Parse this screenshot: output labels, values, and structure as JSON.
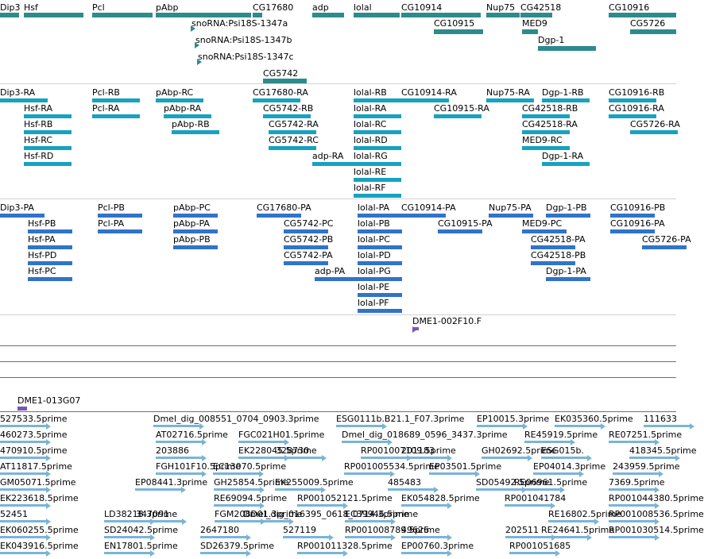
{
  "colors": {
    "gene": "#2e8b8b",
    "transcript_ra": "#17a2bf",
    "transcript_pa": "#3074c8",
    "clone": "#7a55b8",
    "est": "#7ab4d8",
    "divider": "#6e6a8e"
  },
  "icons": {
    "gene_arrow": "triangle-arrow-icon",
    "est_arrow": "triangle-arrow-icon"
  },
  "tracks": {
    "genes": [
      {
        "label": "Dip3"
      },
      {
        "label": "Hsf"
      },
      {
        "label": "Pcl"
      },
      {
        "label": "pAbp"
      },
      {
        "label": "CG17680"
      },
      {
        "label": "adp"
      },
      {
        "label": "lolal"
      },
      {
        "label": "CG10914"
      },
      {
        "label": "Nup75"
      },
      {
        "label": "CG42518"
      },
      {
        "label": "CG10916"
      },
      {
        "label": "snoRNA:Psi18S-1347a"
      },
      {
        "label": "snoRNA:Psi18S-1347b"
      },
      {
        "label": "snoRNA:Psi18S-1347c"
      },
      {
        "label": "CG10915"
      },
      {
        "label": "MED9"
      },
      {
        "label": "Dgp-1"
      },
      {
        "label": "CG5726"
      },
      {
        "label": "CG5742"
      }
    ],
    "transcripts_ra": [
      {
        "label": "Dip3-RA"
      },
      {
        "label": "Pcl-RB"
      },
      {
        "label": "pAbp-RC"
      },
      {
        "label": "CG17680-RA"
      },
      {
        "label": "lolal-RB"
      },
      {
        "label": "CG10914-RA"
      },
      {
        "label": "Nup75-RA"
      },
      {
        "label": "Dgp-1-RB"
      },
      {
        "label": "CG10916-RB"
      },
      {
        "label": "Hsf-RA"
      },
      {
        "label": "Pcl-RA"
      },
      {
        "label": "pAbp-RA"
      },
      {
        "label": "CG5742-RB"
      },
      {
        "label": "lolal-RA"
      },
      {
        "label": "CG10915-RA"
      },
      {
        "label": "CG42518-RB"
      },
      {
        "label": "CG10916-RA"
      },
      {
        "label": "Hsf-RB"
      },
      {
        "label": "pAbp-RB"
      },
      {
        "label": "CG5742-RA"
      },
      {
        "label": "lolal-RC"
      },
      {
        "label": "CG42518-RA"
      },
      {
        "label": "CG5726-RA"
      },
      {
        "label": "Hsf-RC"
      },
      {
        "label": "CG5742-RC"
      },
      {
        "label": "lolal-RD"
      },
      {
        "label": "MED9-RC"
      },
      {
        "label": "Hsf-RD"
      },
      {
        "label": "adp-RA"
      },
      {
        "label": "lolal-RG"
      },
      {
        "label": "Dgp-1-RA"
      },
      {
        "label": "lolal-RE"
      },
      {
        "label": "lolal-RF"
      }
    ],
    "transcripts_pa": [
      {
        "label": "Dip3-PA"
      },
      {
        "label": "Pcl-PB"
      },
      {
        "label": "pAbp-PC"
      },
      {
        "label": "CG17680-PA"
      },
      {
        "label": "lolal-PA"
      },
      {
        "label": "CG10914-PA"
      },
      {
        "label": "Nup75-PA"
      },
      {
        "label": "Dgp-1-PB"
      },
      {
        "label": "CG10916-PB"
      },
      {
        "label": "Hsf-PB"
      },
      {
        "label": "Pcl-PA"
      },
      {
        "label": "pAbp-PA"
      },
      {
        "label": "CG5742-PC"
      },
      {
        "label": "lolal-PB"
      },
      {
        "label": "CG10915-PA"
      },
      {
        "label": "MED9-PC"
      },
      {
        "label": "CG10916-PA"
      },
      {
        "label": "Hsf-PA"
      },
      {
        "label": "pAbp-PB"
      },
      {
        "label": "CG5742-PB"
      },
      {
        "label": "lolal-PC"
      },
      {
        "label": "CG42518-PA"
      },
      {
        "label": "CG5726-PA"
      },
      {
        "label": "Hsf-PD"
      },
      {
        "label": "CG5742-PA"
      },
      {
        "label": "lolal-PD"
      },
      {
        "label": "CG42518-PB"
      },
      {
        "label": "Hsf-PC"
      },
      {
        "label": "adp-PA"
      },
      {
        "label": "lolal-PG"
      },
      {
        "label": "Dgp-1-PA"
      },
      {
        "label": "lolal-PE"
      },
      {
        "label": "lolal-PF"
      }
    ],
    "clones": [
      {
        "label": "DME1-002F10.F"
      },
      {
        "label": "DME1-013G07"
      }
    ],
    "ests": [
      {
        "label": "527533.5prime"
      },
      {
        "label": "Dmel_dig_008551_0704_0903.3prime"
      },
      {
        "label": "ESG0111b.B21.1_F07.3prime"
      },
      {
        "label": "EP10015.3prime"
      },
      {
        "label": "EK035360.5prime"
      },
      {
        "label": "111633"
      },
      {
        "label": "460273.5prime"
      },
      {
        "label": "AT02716.5prime"
      },
      {
        "label": "FGC021H01.5prime"
      },
      {
        "label": "Dmel_dig_018689_0596_3437.3prime"
      },
      {
        "label": "RE45919.5prime"
      },
      {
        "label": "RE07251.5prime"
      },
      {
        "label": "470910.5prime"
      },
      {
        "label": "203886"
      },
      {
        "label": "EK228045.5prime"
      },
      {
        "label": "328730"
      },
      {
        "label": "RP001007109.5prime"
      },
      {
        "label": "201183"
      },
      {
        "label": "GH02692.5prime"
      },
      {
        "label": "ESG015b."
      },
      {
        "label": "418345.5prime"
      },
      {
        "label": "AT11817.5prime"
      },
      {
        "label": "FGH101F10.5prime"
      },
      {
        "label": "EC13070.5prime"
      },
      {
        "label": "RP001005534.5prime"
      },
      {
        "label": "EP03501.5prime"
      },
      {
        "label": "EP04014.3prime"
      },
      {
        "label": "243959.5prime"
      },
      {
        "label": "GM05071.5prime"
      },
      {
        "label": "EP08441.3prime"
      },
      {
        "label": "GH25854.5prime"
      },
      {
        "label": "EK255009.5prime"
      },
      {
        "label": "485483"
      },
      {
        "label": "SD05492.5prime"
      },
      {
        "label": "RE06961.5prime"
      },
      {
        "label": "7369.5prime"
      },
      {
        "label": "EK223618.5prime"
      },
      {
        "label": "RE69094.5prime"
      },
      {
        "label": "RP001052121.5prime"
      },
      {
        "label": "EK054828.5prime"
      },
      {
        "label": "RP001041784"
      },
      {
        "label": "RP001044380.5prime"
      },
      {
        "label": "52451"
      },
      {
        "label": "LD38218.3prime"
      },
      {
        "label": "347091"
      },
      {
        "label": "FGM208D01.3prime"
      },
      {
        "label": "Dmel_dig_016395_0618_0714.3prime"
      },
      {
        "label": "EC39946.5prime"
      },
      {
        "label": "RE16802.5prime"
      },
      {
        "label": "RP001008536.5prime"
      },
      {
        "label": "EK060255.5prime"
      },
      {
        "label": "SD24042.5prime"
      },
      {
        "label": "2647180"
      },
      {
        "label": "527119"
      },
      {
        "label": "RP001008789.5prime"
      },
      {
        "label": "49626"
      },
      {
        "label": "202511"
      },
      {
        "label": "RE24641.5prime"
      },
      {
        "label": "RP001030514.5prime"
      },
      {
        "label": "EK043916.5prime"
      },
      {
        "label": "EN17801.5prime"
      },
      {
        "label": "SD26379.5prime"
      },
      {
        "label": "RP001011328.5prime"
      },
      {
        "label": "EP00760.3prime"
      },
      {
        "label": "RP001051685"
      }
    ]
  }
}
